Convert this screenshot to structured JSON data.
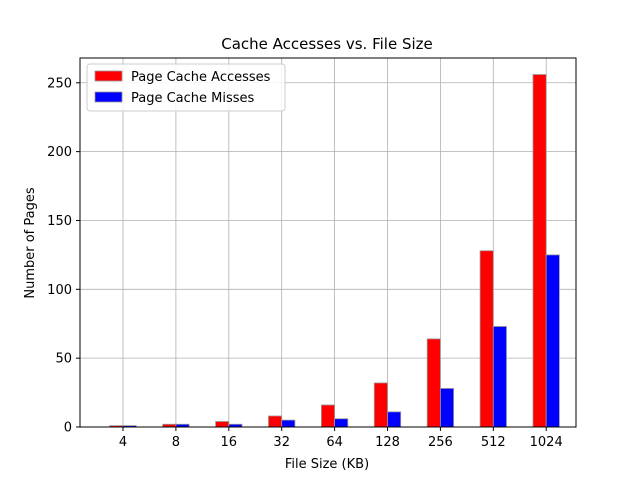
{
  "chart_data": {
    "type": "bar",
    "title": "Cache Accesses vs. File Size",
    "xlabel": "File Size (KB)",
    "ylabel": "Number of Pages",
    "categories": [
      "4",
      "8",
      "16",
      "32",
      "64",
      "128",
      "256",
      "512",
      "1024"
    ],
    "series": [
      {
        "name": "Page Cache Accesses",
        "color": "#ff0000",
        "values": [
          1,
          2,
          4,
          8,
          16,
          32,
          64,
          128,
          256
        ]
      },
      {
        "name": "Page Cache Misses",
        "color": "#0000ff",
        "values": [
          1,
          2,
          2,
          5,
          6,
          11,
          28,
          73,
          125
        ]
      }
    ],
    "ylim": [
      0,
      268
    ],
    "yticks": [
      0,
      50,
      100,
      150,
      200,
      250
    ],
    "grid": true,
    "legend_position": "top-left",
    "bar_edge_color": "#999999"
  }
}
